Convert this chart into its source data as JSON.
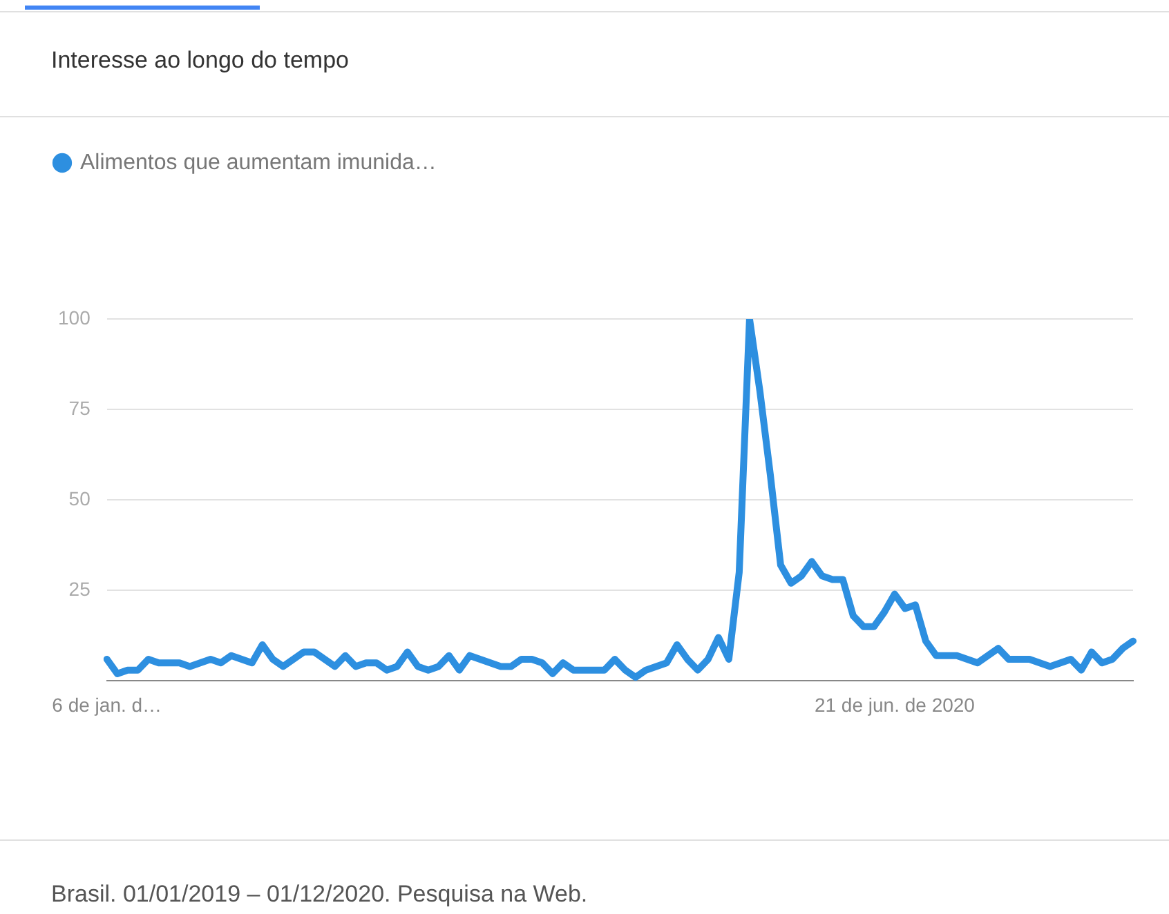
{
  "chart_data": {
    "type": "line",
    "title": "Interesse ao longo do tempo",
    "categories": [
      "6 de jan. d…",
      null,
      null,
      null,
      null,
      null,
      null,
      null,
      null,
      null,
      null,
      null,
      null,
      null,
      null,
      null,
      null,
      null,
      null,
      null,
      null,
      null,
      null,
      null,
      null,
      null,
      null,
      null,
      null,
      null,
      null,
      null,
      null,
      null,
      null,
      null,
      null,
      null,
      null,
      null,
      null,
      null,
      null,
      null,
      null,
      null,
      null,
      null,
      null,
      null,
      null,
      null,
      null,
      null,
      null,
      null,
      null,
      null,
      null,
      null,
      null,
      null,
      null,
      null,
      null,
      null,
      null,
      null,
      null,
      null,
      null,
      null,
      null,
      null,
      null,
      null,
      "21 de jun. de 2020",
      null,
      null,
      null,
      null,
      null,
      null,
      null,
      null,
      null,
      null,
      null,
      null,
      null,
      null,
      null,
      null,
      null,
      null,
      null,
      null,
      null,
      null,
      null
    ],
    "series": [
      {
        "name": "Alimentos que aumentam imunida…",
        "color": "#2d8fe0",
        "values": [
          6,
          2,
          3,
          3,
          6,
          5,
          5,
          5,
          4,
          5,
          6,
          5,
          7,
          6,
          5,
          10,
          6,
          4,
          6,
          8,
          8,
          6,
          4,
          7,
          4,
          5,
          5,
          3,
          4,
          8,
          4,
          3,
          4,
          7,
          3,
          7,
          6,
          5,
          4,
          4,
          6,
          6,
          5,
          2,
          5,
          3,
          3,
          3,
          3,
          6,
          3,
          1,
          3,
          4,
          5,
          10,
          6,
          3,
          6,
          12,
          6,
          30,
          100,
          80,
          57,
          32,
          27,
          29,
          33,
          29,
          28,
          28,
          18,
          15,
          15,
          19,
          24,
          20,
          21,
          11,
          7,
          7,
          7,
          6,
          5,
          7,
          9,
          6,
          6,
          6,
          5,
          4,
          5,
          6,
          3,
          8,
          5,
          6,
          9,
          11
        ]
      }
    ],
    "ylim": [
      0,
      100
    ],
    "yticks": [
      {
        "value": 0,
        "label": null
      },
      25,
      50,
      75,
      100
    ],
    "grid": "y",
    "legend": "top left",
    "marker": "none",
    "line_style": "solid",
    "annotations": [
      "Brasil. 01/01/2019 – 01/12/2020. Pesquisa na Web."
    ]
  }
}
